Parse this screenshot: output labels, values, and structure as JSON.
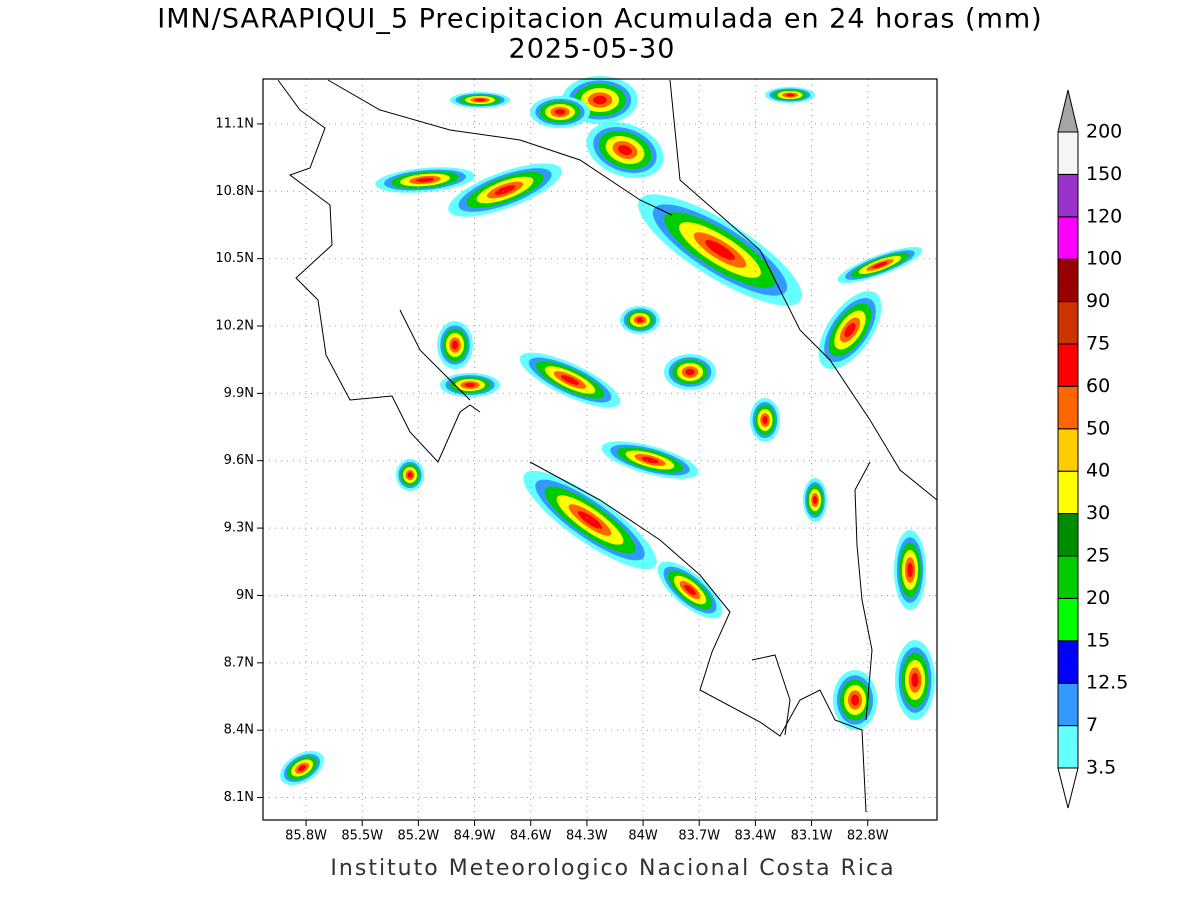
{
  "chart_data": {
    "type": "map",
    "title": "IMN/SARAPIQUI_5 Precipitacion Acumulada en 24 horas (mm)",
    "subtitle": "2025-05-30",
    "footer": "Instituto Meteorologico Nacional Costa Rica",
    "xlim": [
      -86.03,
      -82.43
    ],
    "ylim": [
      8.0,
      11.3
    ],
    "xticks": [
      {
        "value": -85.8,
        "label": "85.8W"
      },
      {
        "value": -85.5,
        "label": "85.5W"
      },
      {
        "value": -85.2,
        "label": "85.2W"
      },
      {
        "value": -84.9,
        "label": "84.9W"
      },
      {
        "value": -84.6,
        "label": "84.6W"
      },
      {
        "value": -84.3,
        "label": "84.3W"
      },
      {
        "value": -84.0,
        "label": "84W"
      },
      {
        "value": -83.7,
        "label": "83.7W"
      },
      {
        "value": -83.4,
        "label": "83.4W"
      },
      {
        "value": -83.1,
        "label": "83.1W"
      },
      {
        "value": -82.8,
        "label": "82.8W"
      }
    ],
    "yticks": [
      {
        "value": 11.1,
        "label": "11.1N"
      },
      {
        "value": 10.8,
        "label": "10.8N"
      },
      {
        "value": 10.5,
        "label": "10.5N"
      },
      {
        "value": 10.2,
        "label": "10.2N"
      },
      {
        "value": 9.9,
        "label": "9.9N"
      },
      {
        "value": 9.6,
        "label": "9.6N"
      },
      {
        "value": 9.3,
        "label": "9.3N"
      },
      {
        "value": 9.0,
        "label": "9N"
      },
      {
        "value": 8.7,
        "label": "8.7N"
      },
      {
        "value": 8.4,
        "label": "8.4N"
      },
      {
        "value": 8.1,
        "label": "8.1N"
      }
    ],
    "grid": true,
    "colorbar": {
      "levels": [
        3.5,
        7,
        12.5,
        15,
        20,
        25,
        30,
        40,
        50,
        60,
        75,
        90,
        100,
        120,
        150,
        200
      ],
      "colors": [
        "#66ffff",
        "#3399ff",
        "#0000ff",
        "#00ff00",
        "#00cc00",
        "#008c00",
        "#ffff00",
        "#ffcc00",
        "#ff6600",
        "#ff0000",
        "#cc3300",
        "#990000",
        "#ff00ff",
        "#9933cc",
        "#f5f5f5"
      ],
      "under_color": "#ffffff",
      "over_color": "#a6a6a6"
    }
  }
}
